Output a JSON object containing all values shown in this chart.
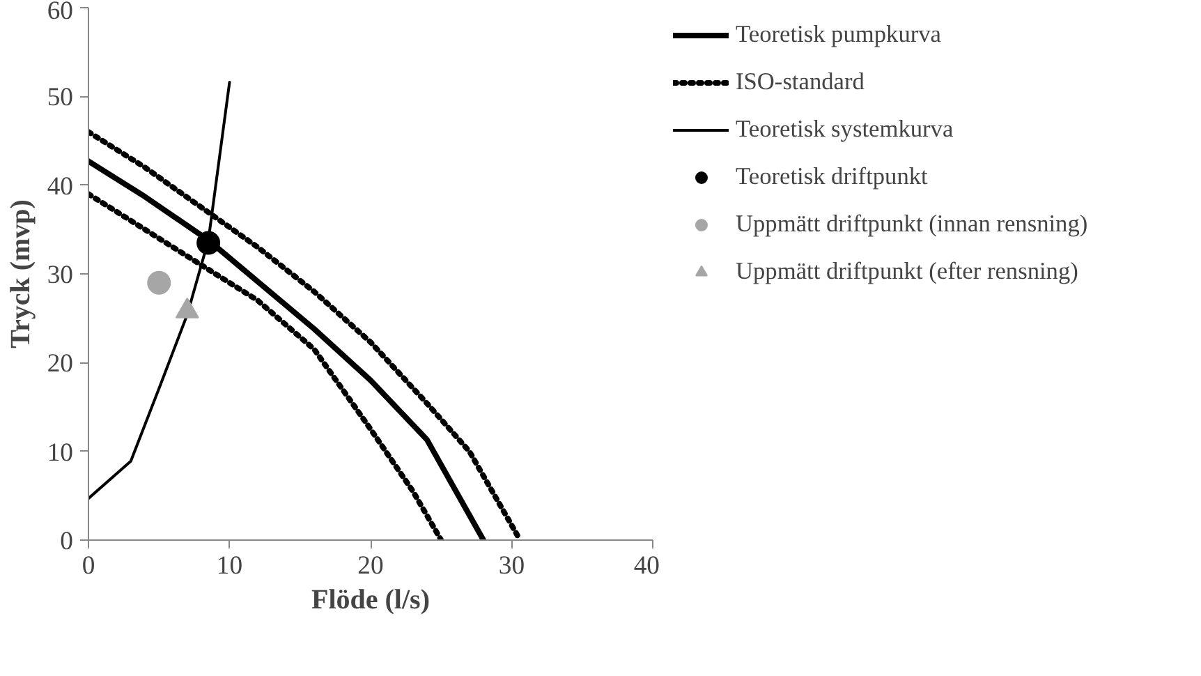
{
  "chart_data": {
    "type": "line",
    "xlabel": "Flöde (l/s)",
    "ylabel": "Tryck (mvp)",
    "xlim": [
      0,
      40
    ],
    "ylim": [
      0,
      60
    ],
    "xticks": [
      0,
      10,
      20,
      30,
      40
    ],
    "yticks": [
      0,
      10,
      20,
      30,
      40,
      50,
      60
    ],
    "grid": false,
    "legend": "right",
    "marker": "none",
    "series": [
      {
        "name": "Teoretisk pumpkurva",
        "color": "#000000",
        "line_style": "solid",
        "x": [
          0,
          4,
          8.5,
          16,
          20,
          24,
          28
        ],
        "values": [
          42.7,
          38.7,
          33.8,
          23.8,
          18,
          11.3,
          0
        ]
      },
      {
        "name": "ISO-standard",
        "color": "#000000",
        "line_style": "dotted",
        "x": [
          0,
          4,
          8,
          12,
          16,
          20,
          24,
          27,
          30.6
        ],
        "values": [
          46,
          42,
          37.5,
          33,
          28,
          22.3,
          15.4,
          10,
          0
        ]
      },
      {
        "color": "#000000",
        "line_style": "dotted",
        "x": [
          0,
          4,
          8,
          12,
          16,
          20,
          23,
          25
        ],
        "values": [
          39,
          35,
          31,
          27,
          21.5,
          12.5,
          5.5,
          0
        ]
      },
      {
        "name": "Teoretisk systemkurva",
        "color": "#000000",
        "line_style": "solid",
        "x": [
          0,
          3,
          5.1,
          7,
          8.5,
          10
        ],
        "values": [
          4.7,
          8.9,
          17.5,
          25.4,
          33.8,
          51.6
        ]
      },
      {
        "name": "Teoretisk driftpunkt",
        "type": "scatter",
        "marker": "circle",
        "color": "#000000",
        "x": [
          8.5
        ],
        "values": [
          33.5
        ]
      },
      {
        "name": "Uppmätt driftpunkt (innan rensning)",
        "type": "scatter",
        "marker": "circle",
        "color": "#a6a6a6",
        "x": [
          5
        ],
        "values": [
          29
        ]
      },
      {
        "name": "Uppmätt driftpunkt (efter rensning)",
        "type": "scatter",
        "marker": "triangle",
        "color": "#a6a6a6",
        "x": [
          7
        ],
        "values": [
          25.8
        ]
      }
    ]
  }
}
